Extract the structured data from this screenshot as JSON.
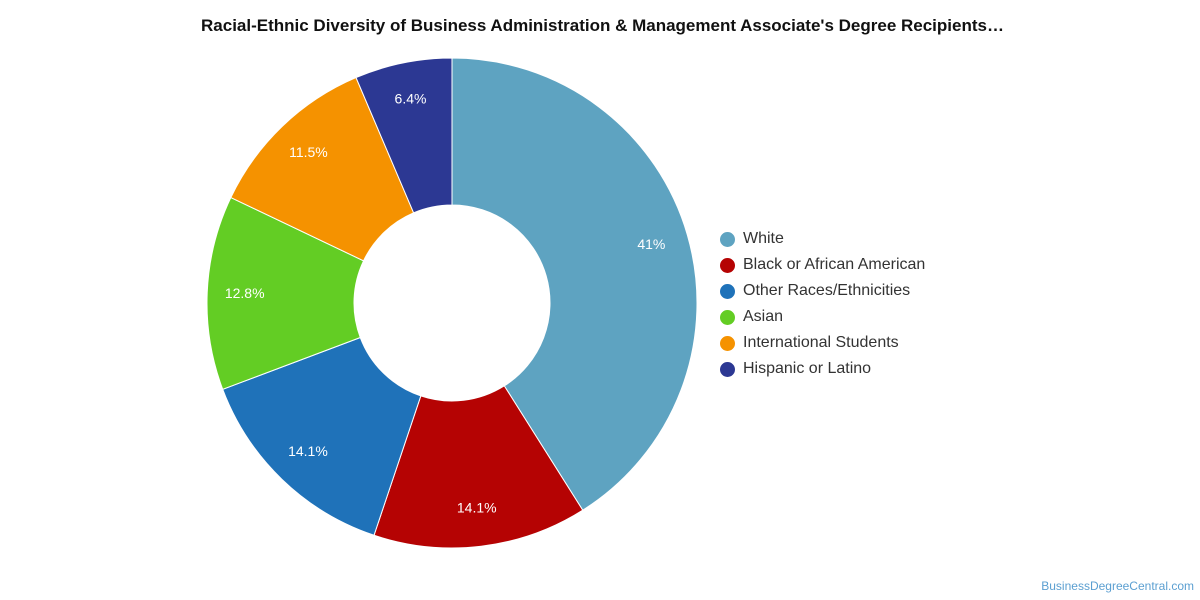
{
  "chart_data": {
    "type": "pie",
    "variant": "donut",
    "title": "Racial-Ethnic Diversity of Business Administration & Management Associate's Degree Recipients…",
    "start_angle_deg": 0,
    "direction": "clockwise",
    "legend_position": "right",
    "slices": [
      {
        "label": "White",
        "value": 41,
        "value_label": "41%",
        "color": "#5ea3c1"
      },
      {
        "label": "Black or African American",
        "value": 14.1,
        "value_label": "14.1%",
        "color": "#b50303"
      },
      {
        "label": "Other Races/Ethnicities",
        "value": 14.1,
        "value_label": "14.1%",
        "color": "#1f72b9"
      },
      {
        "label": "Asian",
        "value": 12.8,
        "value_label": "12.8%",
        "color": "#63cd24"
      },
      {
        "label": "International Students",
        "value": 11.5,
        "value_label": "11.5%",
        "color": "#f59200"
      },
      {
        "label": "Hispanic or Latino",
        "value": 6.4,
        "value_label": "6.4%",
        "color": "#2c3893"
      }
    ]
  },
  "footer": {
    "source": "BusinessDegreeCentral.com"
  }
}
